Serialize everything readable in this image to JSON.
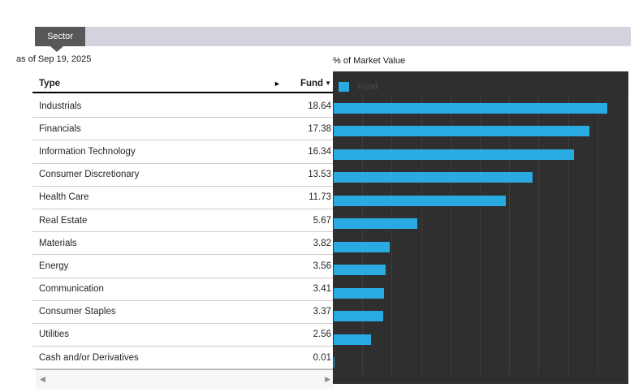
{
  "panel": {
    "title_tab": "Sector"
  },
  "as_of": "as of Sep 19, 2025",
  "table": {
    "type_header": "Type",
    "fund_header": "Fund",
    "expand_arrow": "►",
    "sort_arrow": "▼"
  },
  "scrollbar": {
    "left_arrow": "◀",
    "right_arrow": "▶"
  },
  "chart_data": {
    "type": "bar",
    "orientation": "horizontal",
    "title": "% of Market Value",
    "legend": [
      {
        "label": "Fund",
        "color": "#29abe2"
      }
    ],
    "legend_position": "top-left",
    "categories": [
      "Industrials",
      "Financials",
      "Information Technology",
      "Consumer Discretionary",
      "Health Care",
      "Real Estate",
      "Materials",
      "Energy",
      "Communication",
      "Consumer Staples",
      "Utilities",
      "Cash and/or Derivatives"
    ],
    "values": [
      18.64,
      17.38,
      16.34,
      13.53,
      11.73,
      5.67,
      3.82,
      3.56,
      3.41,
      3.37,
      2.56,
      0.01
    ],
    "xlim": [
      0,
      20
    ],
    "gridline_interval": 2,
    "grid": true,
    "plot_background": "#2f2f2f",
    "bar_color": "#29abe2"
  },
  "colors": {
    "accent_blue": "#29abe2",
    "chart_background": "#2f2f2f",
    "gridline": "#3d3d3d",
    "tab_active": "#58585a",
    "tab_bar": "#d4d3dd",
    "row_separator": "#cccccc",
    "text": "#1a1a1a"
  }
}
